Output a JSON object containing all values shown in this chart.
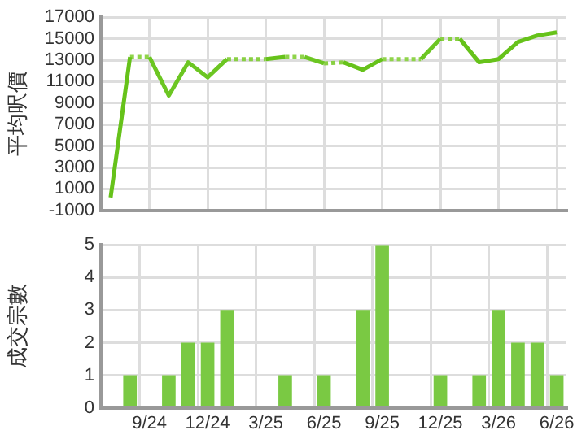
{
  "chart_data": [
    {
      "type": "line",
      "ylabel": "平均呎價",
      "categories": [
        null,
        null,
        null,
        null,
        null,
        null,
        null,
        null,
        null,
        null,
        null,
        null,
        null,
        null,
        null,
        null,
        null,
        null,
        null,
        null,
        null,
        null,
        null,
        null
      ],
      "ylim": [
        -1000,
        17000
      ],
      "yticks": [
        -1000,
        1000,
        3000,
        5000,
        7000,
        9000,
        11000,
        13000,
        15000,
        17000
      ],
      "grid": true,
      "marker": "none",
      "series": [
        {
          "color": "#66c21a",
          "line_style": "solid",
          "values": [
            200,
            13300,
            null,
            null,
            null,
            null,
            null,
            null,
            13100,
            13300,
            null,
            null,
            12800,
            12100,
            13100,
            null,
            null,
            null,
            15000,
            12800,
            13100,
            14700,
            15300,
            15600
          ]
        },
        {
          "color": "#6cc622",
          "line_style": "solid",
          "values": [
            null,
            null,
            13300,
            9700,
            12800,
            11400,
            13100,
            null,
            null,
            null,
            13300,
            12700,
            null,
            null,
            null,
            null,
            13100,
            15000,
            null,
            null,
            null,
            null,
            null,
            null
          ]
        },
        {
          "color": "#8fd44a",
          "line_style": "dotted",
          "values": [
            null,
            13300,
            13300,
            null,
            null,
            null,
            null,
            null,
            null,
            13300,
            13300,
            null,
            null,
            null,
            13100,
            13100,
            13100,
            null,
            null,
            null,
            null,
            null,
            null,
            null
          ]
        },
        {
          "color": "#88d042",
          "line_style": "dotted",
          "values": [
            null,
            null,
            null,
            null,
            null,
            null,
            13100,
            13100,
            13100,
            null,
            null,
            12700,
            12800,
            null,
            null,
            null,
            null,
            15000,
            15000,
            null,
            null,
            null,
            null,
            null
          ]
        }
      ]
    },
    {
      "type": "bar",
      "ylabel": "成交宗數",
      "categories": [
        null,
        null,
        "9/24",
        null,
        null,
        "12/24",
        null,
        null,
        "3/25",
        null,
        null,
        "6/25",
        null,
        null,
        "9/25",
        null,
        null,
        "12/25",
        null,
        null,
        "3/26",
        null,
        null,
        "6/26"
      ],
      "ylim": [
        0,
        5
      ],
      "yticks": [
        0,
        1,
        2,
        3,
        4,
        5
      ],
      "grid": true,
      "color": "#7ac943",
      "values": [
        null,
        1,
        null,
        1,
        2,
        2,
        3,
        null,
        null,
        1,
        null,
        1,
        null,
        3,
        5,
        null,
        null,
        1,
        null,
        1,
        3,
        2,
        2,
        1
      ]
    }
  ]
}
